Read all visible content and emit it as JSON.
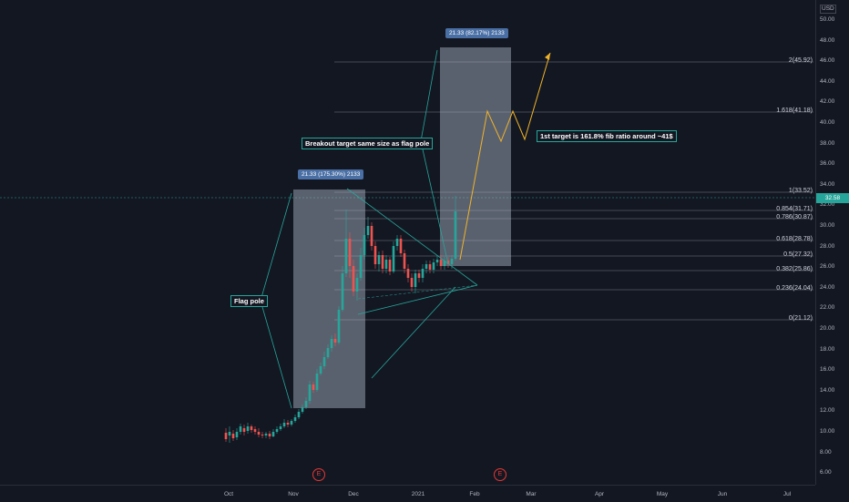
{
  "currency": "USD",
  "current_price": "32.58",
  "price_ticks": [
    "50.00",
    "48.00",
    "46.00",
    "44.00",
    "42.00",
    "40.00",
    "38.00",
    "36.00",
    "34.00",
    "32.00",
    "30.00",
    "28.00",
    "26.00",
    "24.00",
    "22.00",
    "20.00",
    "18.00",
    "16.00",
    "14.00",
    "12.00",
    "10.00",
    "8.00",
    "6.00"
  ],
  "time_ticks": [
    "Oct",
    "Nov",
    "Dec",
    "2021",
    "Feb",
    "Mar",
    "Apr",
    "May",
    "Jun",
    "Jul"
  ],
  "fib_levels": [
    "2(45.92)",
    "1.618(41.18)",
    "1(33.52)",
    "0.854(31.71)",
    "0.786(30.87)",
    "0.618(28.78)",
    "0.5(27.32)",
    "0.382(25.86)",
    "0.236(24.04)",
    "0(21.12)"
  ],
  "boxes": {
    "flag_pole_box": "21.33 (175.30%) 2133",
    "target_box": "21.33 (82.17%) 2133"
  },
  "annotations": {
    "flag_pole": "Flag pole",
    "breakout": "Breakout target same size as flag pole",
    "first_target": "1st target is 161.8% fib ratio around ~41$"
  },
  "event_marker": "E",
  "colors": {
    "up": "#26a69a",
    "down": "#ef5350",
    "projection": "#f0b429",
    "box": "#5d6b82",
    "accent_line": "#26a69a"
  }
}
